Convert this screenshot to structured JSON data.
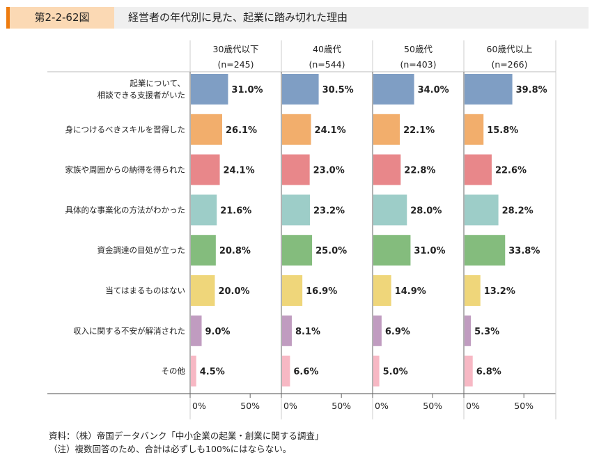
{
  "figure_number": "第2-2-62図",
  "figure_title": "経営者の年代別に見た、起業に踏み切れた理由",
  "chart_data": {
    "type": "bar",
    "orientation": "horizontal",
    "categories": [
      "起業について、\n相談できる支援者がいた",
      "身につけるべきスキルを習得した",
      "家族や周囲からの納得を得られた",
      "具体的な事業化の方法がわかった",
      "資金調達の目処が立った",
      "当てはまるものはない",
      "収入に関する不安が解消された",
      "その他"
    ],
    "category_colors": [
      "#7f9ec4",
      "#f2ae6c",
      "#e8878a",
      "#9dcdc8",
      "#84bc7d",
      "#efd67a",
      "#c09cc0",
      "#f7b8c4"
    ],
    "panels": [
      {
        "name": "30歳代以下",
        "n": "(n=245)",
        "values": [
          31.0,
          26.1,
          24.1,
          21.6,
          20.8,
          20.0,
          9.0,
          4.5
        ]
      },
      {
        "name": "40歳代",
        "n": "(n=544)",
        "values": [
          30.5,
          24.1,
          23.0,
          23.2,
          25.0,
          16.9,
          8.1,
          6.6
        ]
      },
      {
        "name": "50歳代",
        "n": "(n=403)",
        "values": [
          34.0,
          22.1,
          22.8,
          28.0,
          31.0,
          14.9,
          6.9,
          5.0
        ]
      },
      {
        "name": "60歳代以上",
        "n": "(n=266)",
        "values": [
          39.8,
          15.8,
          22.6,
          28.2,
          33.8,
          13.2,
          5.3,
          6.8
        ]
      }
    ],
    "xticks": [
      "0%",
      "50%"
    ],
    "xlim": [
      0,
      76
    ],
    "value_suffix": "%"
  },
  "notes": [
    "資料：（株）帝国データバンク「中小企業の起業・創業に関する調査」",
    "（注）複数回答のため、合計は必ずしも100%にはならない。"
  ]
}
